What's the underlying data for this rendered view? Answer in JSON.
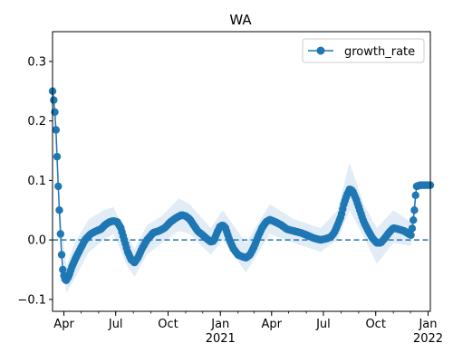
{
  "colors": {
    "series": "#1f77b4",
    "band": "#dce9f5",
    "axis": "#000000"
  },
  "chart_data": {
    "type": "line",
    "title": "WA",
    "xlabel": "",
    "ylabel": "",
    "legend": {
      "position": "top-right",
      "entries": [
        "growth_rate"
      ]
    },
    "grid": false,
    "xlim": [
      "2020-03-12",
      "2022-01-05"
    ],
    "ylim": [
      -0.12,
      0.35
    ],
    "y_ticks": [
      {
        "value": -0.1,
        "label": "−0.1"
      },
      {
        "value": 0.0,
        "label": "0.0"
      },
      {
        "value": 0.1,
        "label": "0.1"
      },
      {
        "value": 0.2,
        "label": "0.2"
      },
      {
        "value": 0.3,
        "label": "0.3"
      }
    ],
    "x_ticks": [
      {
        "date": "2020-04-01",
        "label": "Apr",
        "sublabel": ""
      },
      {
        "date": "2020-07-01",
        "label": "Jul",
        "sublabel": ""
      },
      {
        "date": "2020-10-01",
        "label": "Oct",
        "sublabel": ""
      },
      {
        "date": "2021-01-01",
        "label": "Jan",
        "sublabel": "2021"
      },
      {
        "date": "2021-04-01",
        "label": "Apr",
        "sublabel": ""
      },
      {
        "date": "2021-07-01",
        "label": "Jul",
        "sublabel": ""
      },
      {
        "date": "2021-10-01",
        "label": "Oct",
        "sublabel": ""
      },
      {
        "date": "2022-01-01",
        "label": "Jan",
        "sublabel": "2022"
      }
    ],
    "reference_line": {
      "y": 0.0,
      "style": "dashed"
    },
    "series": [
      {
        "name": "growth_rate",
        "points": [
          [
            "2020-03-12",
            0.25
          ],
          [
            "2020-03-14",
            0.235
          ],
          [
            "2020-03-16",
            0.215
          ],
          [
            "2020-03-18",
            0.185
          ],
          [
            "2020-03-20",
            0.14
          ],
          [
            "2020-03-22",
            0.09
          ],
          [
            "2020-03-24",
            0.05
          ],
          [
            "2020-03-26",
            0.01
          ],
          [
            "2020-03-28",
            -0.025
          ],
          [
            "2020-03-30",
            -0.05
          ],
          [
            "2020-04-02",
            -0.065
          ],
          [
            "2020-04-05",
            -0.068
          ],
          [
            "2020-04-10",
            -0.06
          ],
          [
            "2020-04-15",
            -0.045
          ],
          [
            "2020-04-22",
            -0.03
          ],
          [
            "2020-04-30",
            -0.015
          ],
          [
            "2020-05-08",
            0.0
          ],
          [
            "2020-05-18",
            0.01
          ],
          [
            "2020-05-28",
            0.015
          ],
          [
            "2020-06-05",
            0.018
          ],
          [
            "2020-06-12",
            0.025
          ],
          [
            "2020-06-20",
            0.03
          ],
          [
            "2020-06-27",
            0.032
          ],
          [
            "2020-07-04",
            0.03
          ],
          [
            "2020-07-10",
            0.02
          ],
          [
            "2020-07-16",
            0.0
          ],
          [
            "2020-07-22",
            -0.02
          ],
          [
            "2020-07-28",
            -0.033
          ],
          [
            "2020-08-03",
            -0.038
          ],
          [
            "2020-08-09",
            -0.03
          ],
          [
            "2020-08-16",
            -0.015
          ],
          [
            "2020-08-25",
            0.0
          ],
          [
            "2020-09-05",
            0.012
          ],
          [
            "2020-09-15",
            0.015
          ],
          [
            "2020-09-25",
            0.02
          ],
          [
            "2020-10-05",
            0.03
          ],
          [
            "2020-10-15",
            0.037
          ],
          [
            "2020-10-25",
            0.042
          ],
          [
            "2020-11-01",
            0.04
          ],
          [
            "2020-11-08",
            0.035
          ],
          [
            "2020-11-15",
            0.025
          ],
          [
            "2020-11-22",
            0.015
          ],
          [
            "2020-12-01",
            0.008
          ],
          [
            "2020-12-08",
            0.002
          ],
          [
            "2020-12-15",
            -0.003
          ],
          [
            "2020-12-20",
            -0.002
          ],
          [
            "2020-12-26",
            0.012
          ],
          [
            "2020-12-31",
            0.022
          ],
          [
            "2021-01-05",
            0.025
          ],
          [
            "2021-01-10",
            0.02
          ],
          [
            "2021-01-17",
            0.0
          ],
          [
            "2021-01-24",
            -0.015
          ],
          [
            "2021-02-01",
            -0.025
          ],
          [
            "2021-02-08",
            -0.028
          ],
          [
            "2021-02-15",
            -0.03
          ],
          [
            "2021-02-22",
            -0.025
          ],
          [
            "2021-03-01",
            -0.012
          ],
          [
            "2021-03-08",
            0.005
          ],
          [
            "2021-03-15",
            0.02
          ],
          [
            "2021-03-22",
            0.03
          ],
          [
            "2021-03-29",
            0.034
          ],
          [
            "2021-04-08",
            0.03
          ],
          [
            "2021-04-18",
            0.025
          ],
          [
            "2021-04-28",
            0.018
          ],
          [
            "2021-05-10",
            0.015
          ],
          [
            "2021-05-22",
            0.012
          ],
          [
            "2021-06-02",
            0.008
          ],
          [
            "2021-06-14",
            0.003
          ],
          [
            "2021-06-26",
            0.0
          ],
          [
            "2021-07-06",
            0.002
          ],
          [
            "2021-07-14",
            0.005
          ],
          [
            "2021-07-20",
            0.012
          ],
          [
            "2021-07-26",
            0.025
          ],
          [
            "2021-08-01",
            0.04
          ],
          [
            "2021-08-06",
            0.06
          ],
          [
            "2021-08-11",
            0.075
          ],
          [
            "2021-08-16",
            0.085
          ],
          [
            "2021-08-21",
            0.083
          ],
          [
            "2021-08-27",
            0.07
          ],
          [
            "2021-09-03",
            0.05
          ],
          [
            "2021-09-10",
            0.03
          ],
          [
            "2021-09-18",
            0.015
          ],
          [
            "2021-09-26",
            0.002
          ],
          [
            "2021-10-03",
            -0.005
          ],
          [
            "2021-10-10",
            -0.005
          ],
          [
            "2021-10-17",
            0.003
          ],
          [
            "2021-10-24",
            0.012
          ],
          [
            "2021-11-01",
            0.02
          ],
          [
            "2021-11-10",
            0.018
          ],
          [
            "2021-11-20",
            0.015
          ],
          [
            "2021-11-28",
            0.01
          ],
          [
            "2021-12-02",
            0.008
          ],
          [
            "2021-12-05",
            0.025
          ],
          [
            "2021-12-08",
            0.05
          ],
          [
            "2021-12-10",
            0.075
          ],
          [
            "2021-12-12",
            0.09
          ],
          [
            "2021-12-18",
            0.092
          ],
          [
            "2021-12-26",
            0.092
          ],
          [
            "2022-01-05",
            0.092
          ]
        ],
        "band": [
          [
            "2020-03-12",
            0.24,
            0.26
          ],
          [
            "2020-03-24",
            0.04,
            0.06
          ],
          [
            "2020-04-05",
            -0.09,
            -0.045
          ],
          [
            "2020-04-20",
            -0.065,
            -0.005
          ],
          [
            "2020-05-15",
            -0.02,
            0.035
          ],
          [
            "2020-06-10",
            0.0,
            0.05
          ],
          [
            "2020-06-27",
            0.01,
            0.055
          ],
          [
            "2020-07-22",
            -0.045,
            0.005
          ],
          [
            "2020-08-03",
            -0.062,
            -0.015
          ],
          [
            "2020-08-25",
            -0.025,
            0.025
          ],
          [
            "2020-09-20",
            -0.005,
            0.04
          ],
          [
            "2020-10-20",
            0.015,
            0.07
          ],
          [
            "2020-11-08",
            0.01,
            0.06
          ],
          [
            "2020-12-15",
            -0.025,
            0.02
          ],
          [
            "2021-01-05",
            0.0,
            0.05
          ],
          [
            "2021-02-15",
            -0.055,
            -0.005
          ],
          [
            "2021-03-29",
            0.01,
            0.06
          ],
          [
            "2021-05-10",
            -0.005,
            0.035
          ],
          [
            "2021-06-26",
            -0.02,
            0.02
          ],
          [
            "2021-07-26",
            0.0,
            0.05
          ],
          [
            "2021-08-16",
            0.05,
            0.13
          ],
          [
            "2021-09-10",
            0.005,
            0.06
          ],
          [
            "2021-10-03",
            -0.04,
            0.02
          ],
          [
            "2021-11-01",
            -0.005,
            0.05
          ],
          [
            "2021-12-02",
            -0.01,
            0.03
          ],
          [
            "2021-12-12",
            0.085,
            0.095
          ],
          [
            "2022-01-05",
            0.087,
            0.097
          ]
        ]
      }
    ]
  }
}
